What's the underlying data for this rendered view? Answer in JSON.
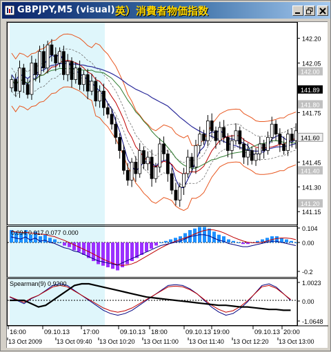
{
  "window": {
    "title": "GBPJPY,M5 (visual)",
    "title_overlay": "英）消費者物価指数",
    "buttons": [
      "minimize-icon",
      "restore-icon",
      "close-icon"
    ]
  },
  "colors": {
    "background": "#ffffff",
    "highlight_band": "#dff6fb",
    "candle": "#000000",
    "price_line": "#000080",
    "bollinger_outer": "#e8561e",
    "bollinger_mid": "#c00000",
    "ma_long": "#2a2a9a",
    "ma_mid": "#2d7a2d",
    "current_price_box": "#000000",
    "macd_up": "#1e90ff",
    "macd_down": "#9b30ff",
    "spearman_line": "#000000",
    "grid_dashed": "#000000"
  },
  "main_chart": {
    "price_labels": [
      "142.20",
      "142.05",
      "142.00",
      "141.89",
      "141.80",
      "141.75",
      "141.60",
      "141.45",
      "141.40",
      "141.30",
      "141.20",
      "141.15"
    ],
    "current_price": "141.89",
    "marked_levels": [
      "142.00",
      "141.80",
      "141.40",
      "141.20"
    ],
    "highlighted_label": "141.60"
  },
  "macd_panel": {
    "header": "0.094 0.017 0.077 0.000",
    "scale_labels": [
      "0.104",
      "0.00",
      "-0.2"
    ]
  },
  "spearman_panel": {
    "header": "Spearman(9) 0.9200",
    "scale_labels": [
      "1.0023",
      "0.00",
      "-1.0648"
    ]
  },
  "time_axis": {
    "labels_top": [
      "16:00",
      "09.10.13",
      "17:00",
      "09.10.13",
      "18:00",
      "09.10.13",
      "19:00",
      "09.10.13",
      "20:00"
    ],
    "labels_bottom": [
      "13 Oct 2009",
      "13 Oct 09:40",
      "13 Oct 10:20",
      "13 Oct 11:00",
      "13 Oct 11:40",
      "13 Oct 12:20",
      "13 Oct 13:00"
    ]
  }
}
